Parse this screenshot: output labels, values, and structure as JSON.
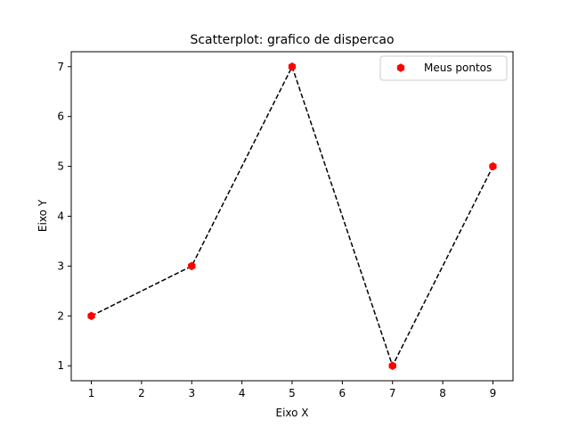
{
  "chart_data": {
    "type": "scatter",
    "title": "Scatterplot: grafico de dispercao",
    "xlabel": "Eixo X",
    "ylabel": "Eixo Y",
    "xlim": [
      0.6,
      9.4
    ],
    "ylim": [
      0.7,
      7.3
    ],
    "xticks": [
      1,
      2,
      3,
      4,
      5,
      6,
      7,
      8,
      9
    ],
    "yticks": [
      1,
      2,
      3,
      4,
      5,
      6,
      7
    ],
    "grid": false,
    "legend_position": "top-right",
    "series": [
      {
        "name": "Meus pontos",
        "x": [
          1,
          3,
          5,
          7,
          9
        ],
        "y": [
          2,
          3,
          7,
          1,
          5
        ],
        "marker": "hexagon",
        "marker_color": "#ff0000",
        "line_style": "dashed",
        "line_color": "#000000"
      }
    ]
  }
}
